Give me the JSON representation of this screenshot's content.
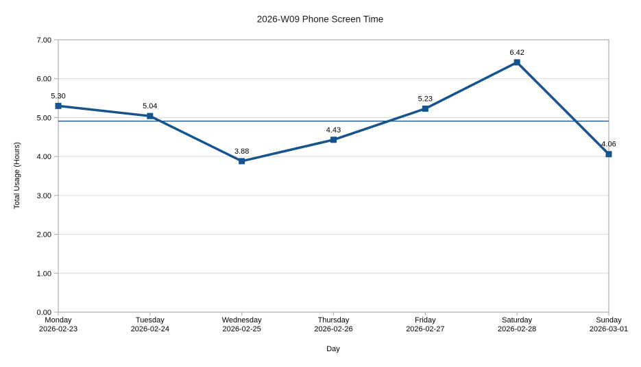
{
  "chart_data": {
    "type": "line",
    "title": "2026-W09 Phone Screen Time",
    "xlabel": "Day",
    "ylabel": "Total Usage (Hours)",
    "categories": [
      {
        "day": "Monday",
        "date": "2026-02-23"
      },
      {
        "day": "Tuesday",
        "date": "2026-02-24"
      },
      {
        "day": "Wednesday",
        "date": "2026-02-25"
      },
      {
        "day": "Thursday",
        "date": "2026-02-26"
      },
      {
        "day": "Friday",
        "date": "2026-02-27"
      },
      {
        "day": "Saturday",
        "date": "2026-02-28"
      },
      {
        "day": "Sunday",
        "date": "2026-03-01"
      }
    ],
    "series": [
      {
        "values": [
          5.3,
          5.04,
          3.88,
          4.43,
          5.23,
          6.42,
          4.06
        ],
        "data_labels": [
          "5.30",
          "5.04",
          "3.88",
          "4.43",
          "5.23",
          "6.42",
          "4.06"
        ],
        "color": "#17538c",
        "marker": "square"
      }
    ],
    "reference_line": {
      "value": 4.91,
      "color": "#17538c"
    },
    "ylim": [
      0,
      7
    ],
    "ytick_labels": [
      "0.00",
      "1.00",
      "2.00",
      "3.00",
      "4.00",
      "5.00",
      "6.00",
      "7.00"
    ],
    "grid": "horizontal",
    "legend": "none",
    "colors": {
      "grid": "#d9d9d9",
      "axis": "#b3b3b3",
      "text": "#000000",
      "title_text": "#1a1a1a",
      "background": "#ffffff"
    }
  }
}
